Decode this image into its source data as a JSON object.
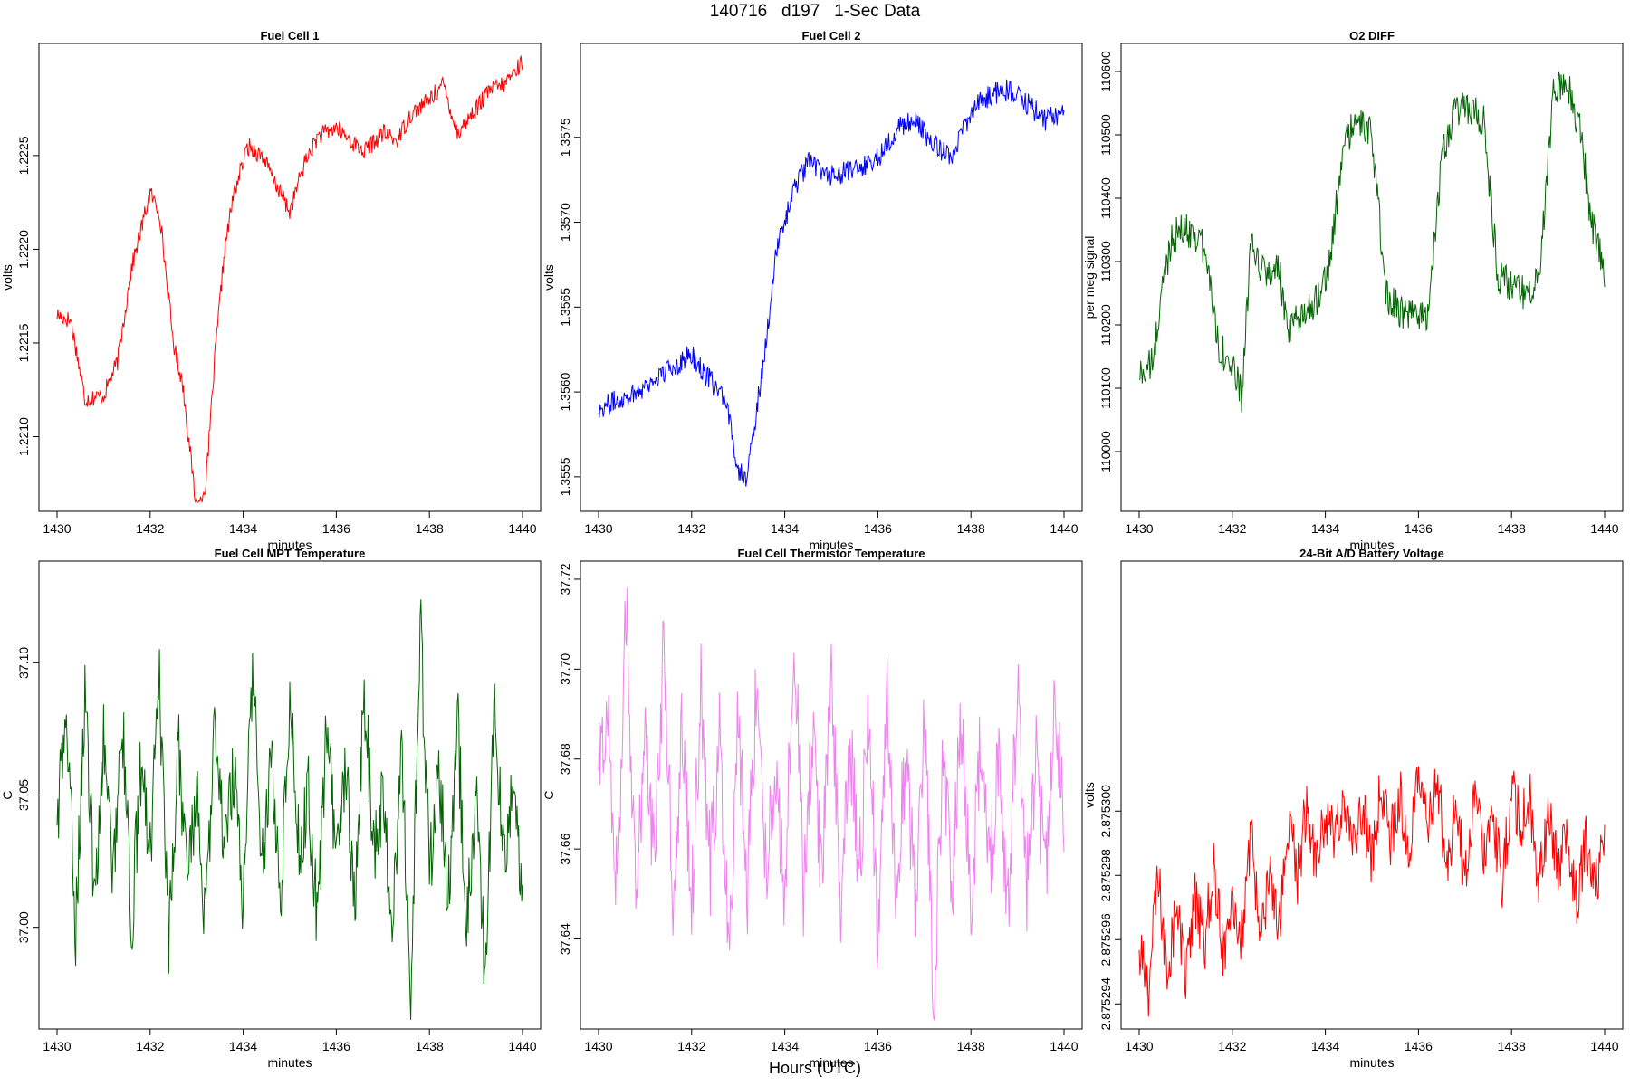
{
  "page": {
    "title": "140716   d197   1-Sec Data",
    "x_outer_label": "Hours (UTC)"
  },
  "chart_data": [
    {
      "type": "line",
      "title": "Fuel Cell 1",
      "xlabel": "minutes",
      "ylabel": "volts",
      "color": "#ff0000",
      "xlim": [
        1430,
        1440
      ],
      "ylim": [
        1.22065,
        1.22305
      ],
      "x_ticks": [
        1430,
        1432,
        1434,
        1436,
        1438,
        1440
      ],
      "y_ticks": [
        1.221,
        1.2215,
        1.222,
        1.2225
      ],
      "y_tick_labels": [
        "1.2210",
        "1.2215",
        "1.2220",
        "1.2225"
      ],
      "series": [
        {
          "x": [
            1430.0,
            1430.3,
            1430.6,
            1431.0,
            1431.3,
            1431.6,
            1432.0,
            1432.2,
            1432.5,
            1432.7,
            1433.0,
            1433.2,
            1433.4,
            1433.6,
            1433.8,
            1434.1,
            1434.4,
            1434.7,
            1435.0,
            1435.3,
            1435.6,
            1436.0,
            1436.3,
            1436.6,
            1437.0,
            1437.3,
            1437.6,
            1438.0,
            1438.3,
            1438.6,
            1439.0,
            1439.3,
            1439.6,
            1440.0
          ],
          "y": [
            1.22165,
            1.22162,
            1.2212,
            1.22122,
            1.2214,
            1.2219,
            1.2223,
            1.2222,
            1.2215,
            1.22128,
            1.2206,
            1.22075,
            1.22145,
            1.222,
            1.2223,
            1.22255,
            1.2225,
            1.22235,
            1.2222,
            1.22245,
            1.2226,
            1.22265,
            1.22258,
            1.22252,
            1.22262,
            1.22258,
            1.22272,
            1.2228,
            1.22288,
            1.22262,
            1.22275,
            1.22285,
            1.22288,
            1.223
          ]
        }
      ]
    },
    {
      "type": "line",
      "title": "Fuel Cell 2",
      "xlabel": "minutes",
      "ylabel": "volts",
      "color": "#0000ff",
      "xlim": [
        1430,
        1440
      ],
      "ylim": [
        1.35535,
        1.358
      ],
      "x_ticks": [
        1430,
        1432,
        1434,
        1436,
        1438,
        1440
      ],
      "y_ticks": [
        1.3555,
        1.356,
        1.3565,
        1.357,
        1.3575
      ],
      "y_tick_labels": [
        "1.3555",
        "1.3560",
        "1.3565",
        "1.3570",
        "1.3575"
      ],
      "series": [
        {
          "x": [
            1430.0,
            1430.4,
            1430.8,
            1431.2,
            1431.6,
            1432.0,
            1432.3,
            1432.6,
            1432.8,
            1433.0,
            1433.2,
            1433.4,
            1433.6,
            1433.8,
            1434.0,
            1434.2,
            1434.5,
            1435.0,
            1435.5,
            1436.0,
            1436.4,
            1436.8,
            1437.2,
            1437.6,
            1438.0,
            1438.4,
            1438.8,
            1439.2,
            1439.6,
            1440.0
          ],
          "y": [
            1.3559,
            1.35595,
            1.356,
            1.35607,
            1.35615,
            1.35622,
            1.3561,
            1.356,
            1.35585,
            1.35555,
            1.3555,
            1.3559,
            1.3563,
            1.3568,
            1.357,
            1.3572,
            1.35735,
            1.35728,
            1.3573,
            1.35738,
            1.35755,
            1.3576,
            1.35745,
            1.3574,
            1.35765,
            1.35775,
            1.35778,
            1.3577,
            1.3576,
            1.35765
          ]
        }
      ]
    },
    {
      "type": "line",
      "title": "O2 DIFF",
      "xlabel": "minutes",
      "ylabel": "per meg signal",
      "color": "#006400",
      "xlim": [
        1430,
        1440
      ],
      "ylim": [
        109920,
        110630
      ],
      "x_ticks": [
        1430,
        1432,
        1434,
        1436,
        1438,
        1440
      ],
      "y_ticks": [
        110000,
        110100,
        110200,
        110300,
        110400,
        110500,
        110600
      ],
      "y_tick_labels": [
        "110000",
        "110100",
        "110200",
        "110300",
        "110400",
        "110500",
        "110600"
      ],
      "series": [
        {
          "x": [
            1430.0,
            1430.3,
            1430.5,
            1430.7,
            1431.0,
            1431.3,
            1431.5,
            1431.7,
            1432.0,
            1432.2,
            1432.4,
            1432.7,
            1433.0,
            1433.2,
            1433.5,
            1433.8,
            1434.1,
            1434.4,
            1434.7,
            1435.0,
            1435.3,
            1435.6,
            1435.9,
            1436.2,
            1436.5,
            1436.8,
            1437.1,
            1437.4,
            1437.7,
            1438.0,
            1438.3,
            1438.6,
            1438.9,
            1439.2,
            1439.5,
            1439.7,
            1440.0
          ],
          "y": [
            110120,
            110140,
            110260,
            110340,
            110350,
            110340,
            110280,
            110170,
            110130,
            110090,
            110320,
            110280,
            110290,
            110180,
            110220,
            110240,
            110300,
            110490,
            110520,
            110500,
            110250,
            110220,
            110210,
            110220,
            110460,
            110540,
            110540,
            110520,
            110280,
            110260,
            110250,
            110280,
            110570,
            110580,
            110500,
            110370,
            110280
          ]
        }
      ]
    },
    {
      "type": "line",
      "title": "Fuel Cell MPT Temperature",
      "xlabel": "minutes",
      "ylabel": "C",
      "color": "#006400",
      "xlim": [
        1430,
        1440
      ],
      "ylim": [
        36.965,
        37.135
      ],
      "x_ticks": [
        1430,
        1432,
        1434,
        1436,
        1438,
        1440
      ],
      "y_ticks": [
        37.0,
        37.05,
        37.1
      ],
      "y_tick_labels": [
        "37.00",
        "37.05",
        "37.10"
      ],
      "series": [
        {
          "x": [
            1430.0,
            1430.2,
            1430.4,
            1430.6,
            1430.8,
            1431.0,
            1431.2,
            1431.4,
            1431.6,
            1431.8,
            1432.0,
            1432.2,
            1432.4,
            1432.6,
            1432.8,
            1433.0,
            1433.2,
            1433.4,
            1433.6,
            1433.8,
            1434.0,
            1434.2,
            1434.4,
            1434.6,
            1434.8,
            1435.0,
            1435.2,
            1435.4,
            1435.6,
            1435.8,
            1436.0,
            1436.2,
            1436.4,
            1436.6,
            1436.8,
            1437.0,
            1437.2,
            1437.4,
            1437.6,
            1437.8,
            1438.0,
            1438.2,
            1438.4,
            1438.6,
            1438.8,
            1439.0,
            1439.2,
            1439.4,
            1439.6,
            1439.8,
            1440.0
          ],
          "y": [
            37.04,
            37.08,
            37.0,
            37.09,
            37.01,
            37.07,
            37.02,
            37.08,
            37.0,
            37.06,
            37.03,
            37.09,
            36.99,
            37.07,
            37.02,
            37.05,
            37.0,
            37.08,
            37.03,
            37.06,
            37.01,
            37.1,
            37.02,
            37.07,
            37.01,
            37.09,
            37.03,
            37.05,
            37.0,
            37.08,
            37.02,
            37.06,
            37.01,
            37.09,
            37.03,
            37.05,
            37.0,
            37.07,
            36.97,
            37.12,
            37.02,
            37.06,
            37.01,
            37.08,
            37.0,
            37.05,
            36.98,
            37.09,
            37.02,
            37.06,
            37.01
          ]
        }
      ]
    },
    {
      "type": "line",
      "title": "Fuel Cell Thermistor Temperature",
      "xlabel": "minutes",
      "ylabel": "C",
      "color": "#ee82ee",
      "xlim": [
        1430,
        1440
      ],
      "ylim": [
        37.622,
        37.722
      ],
      "x_ticks": [
        1430,
        1432,
        1434,
        1436,
        1438,
        1440
      ],
      "y_ticks": [
        37.64,
        37.66,
        37.68,
        37.7,
        37.72
      ],
      "y_tick_labels": [
        "37.64",
        "37.66",
        "37.68",
        "37.70",
        "37.72"
      ],
      "series": [
        {
          "x": [
            1430.0,
            1430.2,
            1430.4,
            1430.6,
            1430.8,
            1431.0,
            1431.2,
            1431.4,
            1431.6,
            1431.8,
            1432.0,
            1432.2,
            1432.4,
            1432.6,
            1432.8,
            1433.0,
            1433.2,
            1433.4,
            1433.6,
            1433.8,
            1434.0,
            1434.2,
            1434.4,
            1434.6,
            1434.8,
            1435.0,
            1435.2,
            1435.4,
            1435.6,
            1435.8,
            1436.0,
            1436.2,
            1436.4,
            1436.6,
            1436.8,
            1437.0,
            1437.2,
            1437.4,
            1437.6,
            1437.8,
            1438.0,
            1438.2,
            1438.4,
            1438.6,
            1438.8,
            1439.0,
            1439.2,
            1439.4,
            1439.6,
            1439.8,
            1440.0
          ],
          "y": [
            37.677,
            37.69,
            37.65,
            37.716,
            37.645,
            37.69,
            37.655,
            37.705,
            37.65,
            37.688,
            37.648,
            37.695,
            37.655,
            37.685,
            37.64,
            37.69,
            37.652,
            37.7,
            37.655,
            37.68,
            37.645,
            37.712,
            37.65,
            37.688,
            37.652,
            37.7,
            37.645,
            37.684,
            37.655,
            37.69,
            37.64,
            37.695,
            37.65,
            37.682,
            37.648,
            37.692,
            37.627,
            37.68,
            37.652,
            37.69,
            37.645,
            37.686,
            37.655,
            37.68,
            37.648,
            37.696,
            37.652,
            37.682,
            37.65,
            37.69,
            37.665
          ]
        }
      ]
    },
    {
      "type": "line",
      "title": "24-Bit A/D Battery Voltage",
      "xlabel": "minutes",
      "ylabel": "volts",
      "color": "#ff0000",
      "xlim": [
        1430,
        1440
      ],
      "ylim": [
        2.8752935,
        2.8753075
      ],
      "x_ticks": [
        1430,
        1432,
        1434,
        1436,
        1438,
        1440
      ],
      "y_ticks": [
        2.875294,
        2.875296,
        2.875298,
        2.8753
      ],
      "y_tick_labels": [
        "2.875294",
        "2.875296",
        "2.875298",
        "2.875300"
      ],
      "series": [
        {
          "x": [
            1430.0,
            1430.2,
            1430.4,
            1430.6,
            1430.8,
            1431.0,
            1431.2,
            1431.4,
            1431.6,
            1431.8,
            1432.0,
            1432.2,
            1432.4,
            1432.6,
            1432.8,
            1433.0,
            1433.2,
            1433.4,
            1433.6,
            1433.8,
            1434.0,
            1434.2,
            1434.4,
            1434.6,
            1434.8,
            1435.0,
            1435.2,
            1435.4,
            1435.6,
            1435.8,
            1436.0,
            1436.2,
            1436.4,
            1436.6,
            1436.8,
            1437.0,
            1437.2,
            1437.4,
            1437.6,
            1437.8,
            1438.0,
            1438.2,
            1438.4,
            1438.6,
            1438.8,
            1439.0,
            1439.2,
            1439.4,
            1439.6,
            1439.8,
            1440.0
          ],
          "y": [
            2.8752955,
            2.8752945,
            2.875298,
            2.875295,
            2.875297,
            2.8752948,
            2.8752972,
            2.8752958,
            2.8752982,
            2.8752955,
            2.8752976,
            2.875296,
            2.875299,
            2.8752965,
            2.8752978,
            2.8752962,
            2.8752995,
            2.875298,
            2.8753002,
            2.8752985,
            2.8752998,
            2.875299,
            2.8753006,
            2.8752988,
            2.8753002,
            2.8752985,
            2.8753008,
            2.8752992,
            2.8753004,
            2.8752988,
            2.875301,
            2.8752995,
            2.8753012,
            2.875298,
            2.8753004,
            2.8752978,
            2.8753006,
            2.875299,
            2.8753,
            2.8752976,
            2.8753008,
            2.8752995,
            2.8753002,
            2.8752978,
            2.8752998,
            2.875298,
            2.8752994,
            2.8752972,
            2.875299,
            2.8752978,
            2.875299
          ]
        }
      ]
    }
  ]
}
